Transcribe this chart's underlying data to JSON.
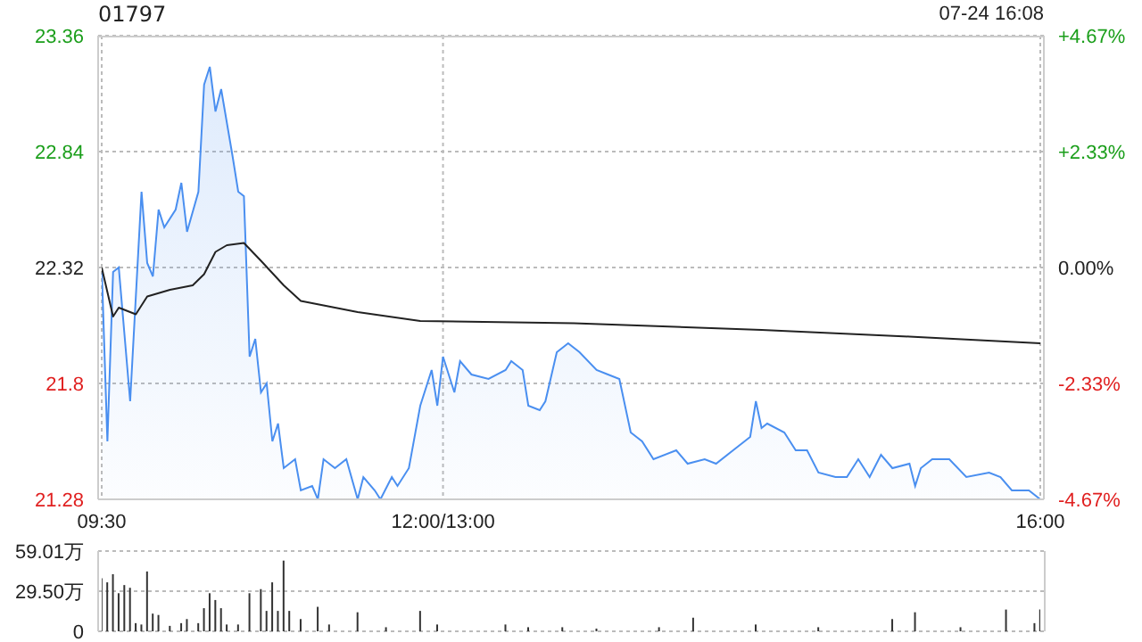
{
  "chart_data": [
    {
      "type": "area",
      "title": "01797",
      "annotations": [
        "07-24 16:08"
      ],
      "categories": [
        "09:30",
        null,
        null,
        null,
        null,
        null,
        null,
        null,
        null,
        null,
        null,
        null,
        null,
        null,
        null,
        null,
        null,
        null,
        null,
        null,
        null,
        null,
        null,
        null,
        null,
        null,
        null,
        null,
        null,
        null,
        null,
        null,
        null,
        null,
        null,
        null,
        null,
        null,
        null,
        null,
        null,
        null,
        null,
        null,
        null,
        null,
        null,
        null,
        null,
        null,
        null,
        null,
        null,
        null,
        null,
        null,
        null,
        null,
        null,
        null,
        "12:00/13:00",
        null,
        null,
        null,
        null,
        null,
        null,
        null,
        null,
        null,
        null,
        null,
        null,
        null,
        null,
        null,
        null,
        null,
        null,
        null,
        null,
        null,
        null,
        null,
        null,
        null,
        null,
        null,
        null,
        null,
        null,
        null,
        null,
        null,
        null,
        null,
        null,
        null,
        null,
        null,
        null,
        null,
        null,
        null,
        null,
        null,
        null,
        null,
        null,
        null,
        null,
        null,
        null,
        null,
        null,
        null,
        null,
        null,
        null,
        null,
        null,
        null,
        null,
        null,
        null,
        null,
        null,
        null,
        null,
        null,
        null,
        null,
        null,
        null,
        null,
        null,
        null,
        null,
        null,
        null,
        null,
        null,
        null,
        null,
        null,
        null,
        null,
        null,
        null,
        null,
        null,
        null,
        null,
        null,
        null,
        null,
        null,
        null,
        null,
        null,
        null,
        null,
        null,
        null,
        null,
        "16:00"
      ],
      "ylim": [
        21.28,
        23.36
      ],
      "yticks": [
        21.28,
        21.8,
        22.32,
        22.84,
        23.36
      ],
      "y2lim": [
        -4.67,
        4.67
      ],
      "y2ticks": [
        {
          "value": -4.67,
          "label": "-4.67%"
        },
        {
          "value": -2.33,
          "label": "-2.33%"
        },
        {
          "value": 0,
          "label": "0.00%"
        },
        {
          "value": 2.33,
          "label": "+2.33%"
        },
        {
          "value": 4.67,
          "label": "+4.67%"
        }
      ],
      "grid": true,
      "marker": "none",
      "series": [
        {
          "type": "area",
          "color": "#4a8ff0",
          "values": [
            22.32,
            21.54,
            22.3,
            22.32,
            22.02,
            21.72,
            null,
            22.66,
            22.34,
            22.28,
            22.58,
            22.5,
            null,
            22.58,
            22.7,
            22.48,
            null,
            22.66,
            23.14,
            23.22,
            23.02,
            23.12,
            null,
            22.82,
            22.66,
            22.64,
            21.92,
            22.0,
            21.76,
            21.8,
            21.54,
            21.62,
            21.42,
            null,
            21.46,
            21.32,
            null,
            21.34,
            21.28,
            21.46,
            null,
            21.42,
            null,
            21.46,
            null,
            21.28,
            21.38,
            null,
            21.32,
            21.28,
            null,
            21.38,
            21.34,
            null,
            21.42,
            null,
            21.7,
            21.78,
            21.86,
            21.7,
            21.92,
            null,
            21.76,
            21.9,
            null,
            21.84,
            null,
            null,
            21.82,
            null,
            null,
            21.86,
            21.9,
            null,
            21.86,
            21.7,
            null,
            21.68,
            21.72,
            null,
            21.94,
            null,
            21.98,
            null,
            21.94,
            null,
            null,
            21.86,
            null,
            21.84,
            null,
            21.82,
            null,
            21.58,
            null,
            21.54,
            null,
            21.46,
            null,
            null,
            null,
            21.5,
            null,
            21.44,
            null,
            null,
            21.46,
            null,
            21.44,
            null,
            null,
            21.5,
            null,
            null,
            21.56,
            21.72,
            21.6,
            21.62,
            null,
            null,
            21.58,
            null,
            21.5,
            null,
            21.5,
            null,
            21.4,
            null,
            null,
            21.38,
            null,
            21.38,
            null,
            21.46,
            null,
            21.38,
            null,
            21.48,
            null,
            21.42,
            null,
            null,
            21.44,
            21.34,
            21.42,
            null,
            21.46,
            null,
            null,
            21.46,
            null,
            null,
            21.38,
            null,
            null,
            null,
            21.4,
            null,
            21.38,
            null,
            21.32,
            null,
            null,
            21.32,
            null,
            21.28
          ]
        },
        {
          "type": "line",
          "color": "#222222",
          "values": [
            22.32,
            null,
            22.1,
            22.14,
            null,
            null,
            22.11,
            null,
            22.19,
            null,
            null,
            null,
            22.22,
            null,
            null,
            null,
            22.24,
            null,
            22.29,
            null,
            22.39,
            null,
            22.42,
            null,
            null,
            22.43,
            null,
            null,
            22.35,
            null,
            null,
            null,
            22.24,
            null,
            null,
            22.17,
            null,
            null,
            null,
            22.15,
            null,
            null,
            null,
            null,
            null,
            22.12,
            null,
            null,
            null,
            null,
            null,
            null,
            null,
            null,
            null,
            null,
            22.08,
            null,
            null,
            null,
            null,
            null,
            null,
            null,
            null,
            null,
            null,
            null,
            null,
            null,
            null,
            null,
            null,
            null,
            null,
            null,
            null,
            null,
            null,
            null,
            null,
            null,
            null,
            22.07,
            null,
            null,
            null,
            null,
            null,
            null,
            null,
            null,
            null,
            null,
            null,
            null,
            null,
            null,
            null,
            null,
            null,
            null,
            null,
            null,
            null,
            null,
            null,
            null,
            null,
            null,
            null,
            null,
            null,
            null,
            null,
            null,
            22.04,
            null,
            null,
            null,
            null,
            null,
            null,
            null,
            null,
            null,
            null,
            null,
            null,
            null,
            null,
            null,
            null,
            null,
            null,
            null,
            null,
            null,
            null,
            null,
            null,
            null,
            22.01,
            null,
            null,
            null,
            null,
            null,
            null,
            null,
            null,
            null,
            null,
            null,
            null,
            null,
            null,
            null,
            null,
            null,
            null,
            null,
            null,
            null,
            null,
            21.98
          ]
        }
      ]
    },
    {
      "type": "bar",
      "color": "#333333",
      "categories": [
        null,
        null,
        null,
        null,
        null,
        null,
        null,
        null,
        null,
        null,
        null,
        null,
        null,
        null,
        null,
        null,
        null,
        null,
        null,
        null,
        null,
        null,
        null,
        null,
        null,
        null,
        null,
        null,
        null,
        null,
        null,
        null,
        null,
        null,
        null,
        null,
        null,
        null,
        null,
        null,
        null,
        null,
        null,
        null,
        null,
        null,
        null,
        null,
        null,
        null,
        null,
        null,
        null,
        null,
        null,
        null,
        null,
        null,
        null,
        null,
        null,
        null,
        null,
        null,
        null,
        null,
        null,
        null,
        null,
        null,
        null,
        null,
        null,
        null,
        null,
        null,
        null,
        null,
        null,
        null,
        null,
        null,
        null,
        null,
        null,
        null,
        null,
        null,
        null,
        null,
        null,
        null,
        null,
        null,
        null,
        null,
        null,
        null,
        null,
        null,
        null,
        null,
        null,
        null,
        null,
        null,
        null,
        null,
        null,
        null,
        null,
        null,
        null,
        null,
        null,
        null,
        null,
        null,
        null,
        null,
        null,
        null,
        null,
        null,
        null,
        null,
        null,
        null,
        null,
        null,
        null,
        null,
        null,
        null,
        null,
        null,
        null,
        null,
        null,
        null,
        null,
        null,
        null,
        null,
        null,
        null,
        null,
        null,
        null,
        null,
        null,
        null,
        null,
        null,
        null,
        null,
        null,
        null,
        null,
        null,
        null,
        null,
        null,
        null,
        null,
        null
      ],
      "ylim": [
        0,
        59.01
      ],
      "yticks": [
        0,
        {
          "value": 29.5,
          "label": "29.50万"
        },
        {
          "value": 59.01,
          "label": "59.01万"
        }
      ],
      "grid": "y",
      "tick_labels": "y",
      "values": [
        39,
        36,
        42,
        28,
        34,
        32,
        6,
        5,
        44,
        13,
        12,
        null,
        4,
        null,
        6,
        9,
        null,
        6,
        17,
        28,
        23,
        17,
        5,
        null,
        5,
        null,
        28,
        null,
        31,
        15,
        36,
        15,
        52,
        15,
        null,
        9,
        null,
        null,
        18,
        null,
        5,
        null,
        null,
        null,
        null,
        14,
        null,
        null,
        null,
        null,
        3,
        null,
        null,
        null,
        null,
        null,
        15,
        null,
        null,
        5,
        null,
        null,
        null,
        null,
        null,
        null,
        null,
        null,
        null,
        null,
        null,
        5,
        null,
        null,
        null,
        3,
        null,
        null,
        null,
        null,
        null,
        3,
        null,
        null,
        null,
        null,
        null,
        2,
        null,
        null,
        null,
        null,
        null,
        null,
        null,
        null,
        null,
        null,
        3,
        null,
        null,
        null,
        null,
        null,
        10,
        null,
        null,
        null,
        null,
        null,
        null,
        null,
        null,
        null,
        null,
        5,
        null,
        null,
        null,
        null,
        null,
        null,
        null,
        null,
        null,
        null,
        3,
        null,
        null,
        null,
        null,
        null,
        null,
        null,
        null,
        null,
        null,
        null,
        null,
        9,
        null,
        null,
        null,
        14,
        null,
        null,
        null,
        null,
        null,
        null,
        null,
        3,
        null,
        null,
        null,
        null,
        null,
        null,
        null,
        16,
        null,
        null,
        null,
        null,
        6,
        16
      ]
    }
  ]
}
